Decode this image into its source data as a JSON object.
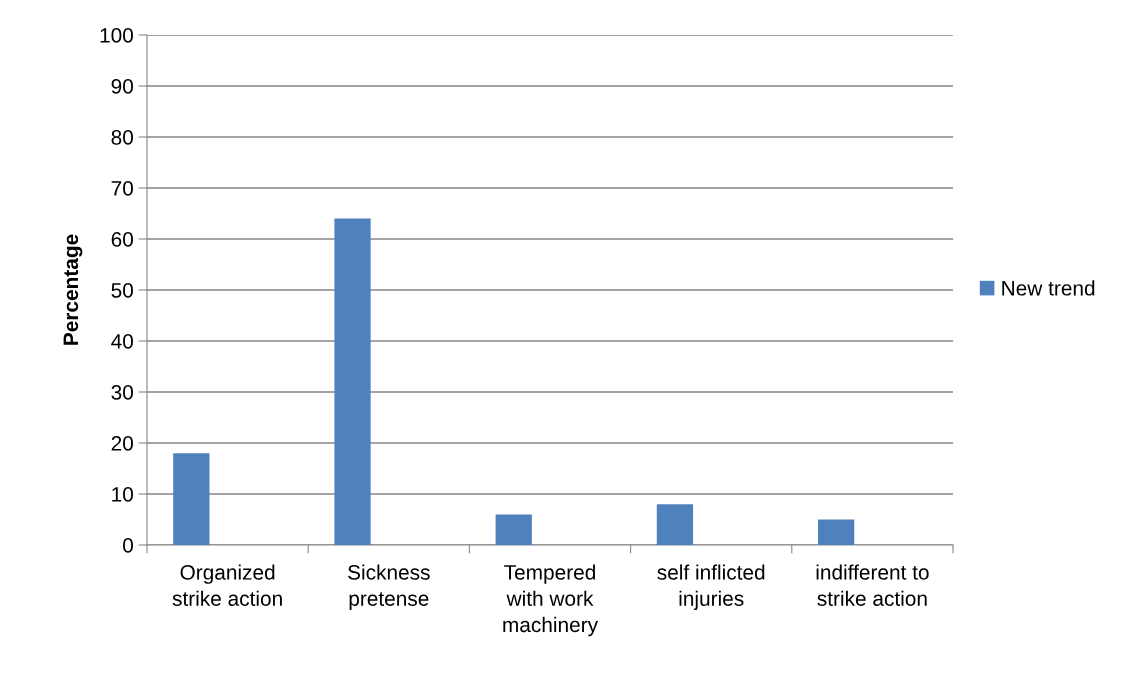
{
  "chart_data": {
    "type": "bar",
    "ylabel": "Percentage",
    "categories": [
      "Organized\nstrike action",
      "Sickness\npretense",
      "Tempered\nwith work\nmachinery",
      "self inflicted\ninjuries",
      "indifferent to\nstrike action"
    ],
    "series": [
      {
        "name": "New trend",
        "color": "#4f81bd",
        "values": [
          18,
          64,
          6,
          8,
          5
        ]
      }
    ],
    "ylim": [
      0,
      100
    ],
    "yticks": [
      0,
      10,
      20,
      30,
      40,
      50,
      60,
      70,
      80,
      90,
      100
    ],
    "grid": "y",
    "legend": "right"
  }
}
